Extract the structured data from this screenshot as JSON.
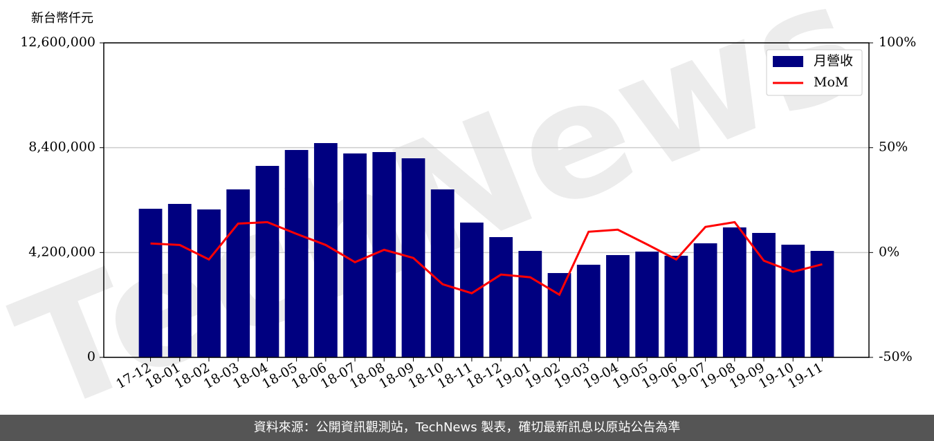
{
  "chart_data": {
    "type": "bar_line",
    "y_label": "新台幣仟元",
    "watermark": "TechNews",
    "categories": [
      "17-12",
      "18-01",
      "18-02",
      "18-03",
      "18-04",
      "18-05",
      "18-06",
      "18-07",
      "18-08",
      "18-09",
      "18-10",
      "18-11",
      "18-12",
      "19-01",
      "19-02",
      "19-03",
      "19-04",
      "19-05",
      "19-06",
      "19-07",
      "19-08",
      "19-09",
      "19-10",
      "19-11"
    ],
    "series": [
      {
        "name": "月營收",
        "type": "bar",
        "color": "#000080",
        "values": [
          5954000,
          6148000,
          5926000,
          6729000,
          7671000,
          8308000,
          8585000,
          8169000,
          8225000,
          7975000,
          6729000,
          5400000,
          4818000,
          4265000,
          3378000,
          3711000,
          4098000,
          4237000,
          4071000,
          4569000,
          5206000,
          4985000,
          4514000,
          4265000
        ]
      },
      {
        "name": "MoM",
        "type": "line",
        "axis": "y2",
        "color": "#ff0000",
        "values": [
          4.3,
          3.6,
          -3.3,
          13.8,
          14.5,
          8.9,
          3.6,
          -4.6,
          1.3,
          -2.6,
          -15.1,
          -19.4,
          -10.5,
          -11.8,
          -20.1,
          9.9,
          10.9,
          3.9,
          -3.3,
          12.2,
          14.5,
          -3.9,
          -9.2,
          -5.6
        ]
      }
    ],
    "ylim": [
      0,
      12600000
    ],
    "yticks": [
      0,
      {
        "value": 4200000,
        "label": "4,200,000"
      },
      {
        "value": 8400000,
        "label": "8,400,000"
      },
      {
        "value": 12600000,
        "label": "12,600,000"
      }
    ],
    "y2lim": [
      -50,
      100
    ],
    "y2ticks": [
      {
        "value": -50,
        "label": "-50%"
      },
      {
        "value": 0,
        "label": "0%"
      },
      {
        "value": 50,
        "label": "50%"
      },
      {
        "value": 100,
        "label": "100%"
      }
    ],
    "grid": true,
    "legend": "upper right"
  },
  "footer": "資料來源：公開資訊觀測站，TechNews 製表，確切最新訊息以原站公告為準"
}
